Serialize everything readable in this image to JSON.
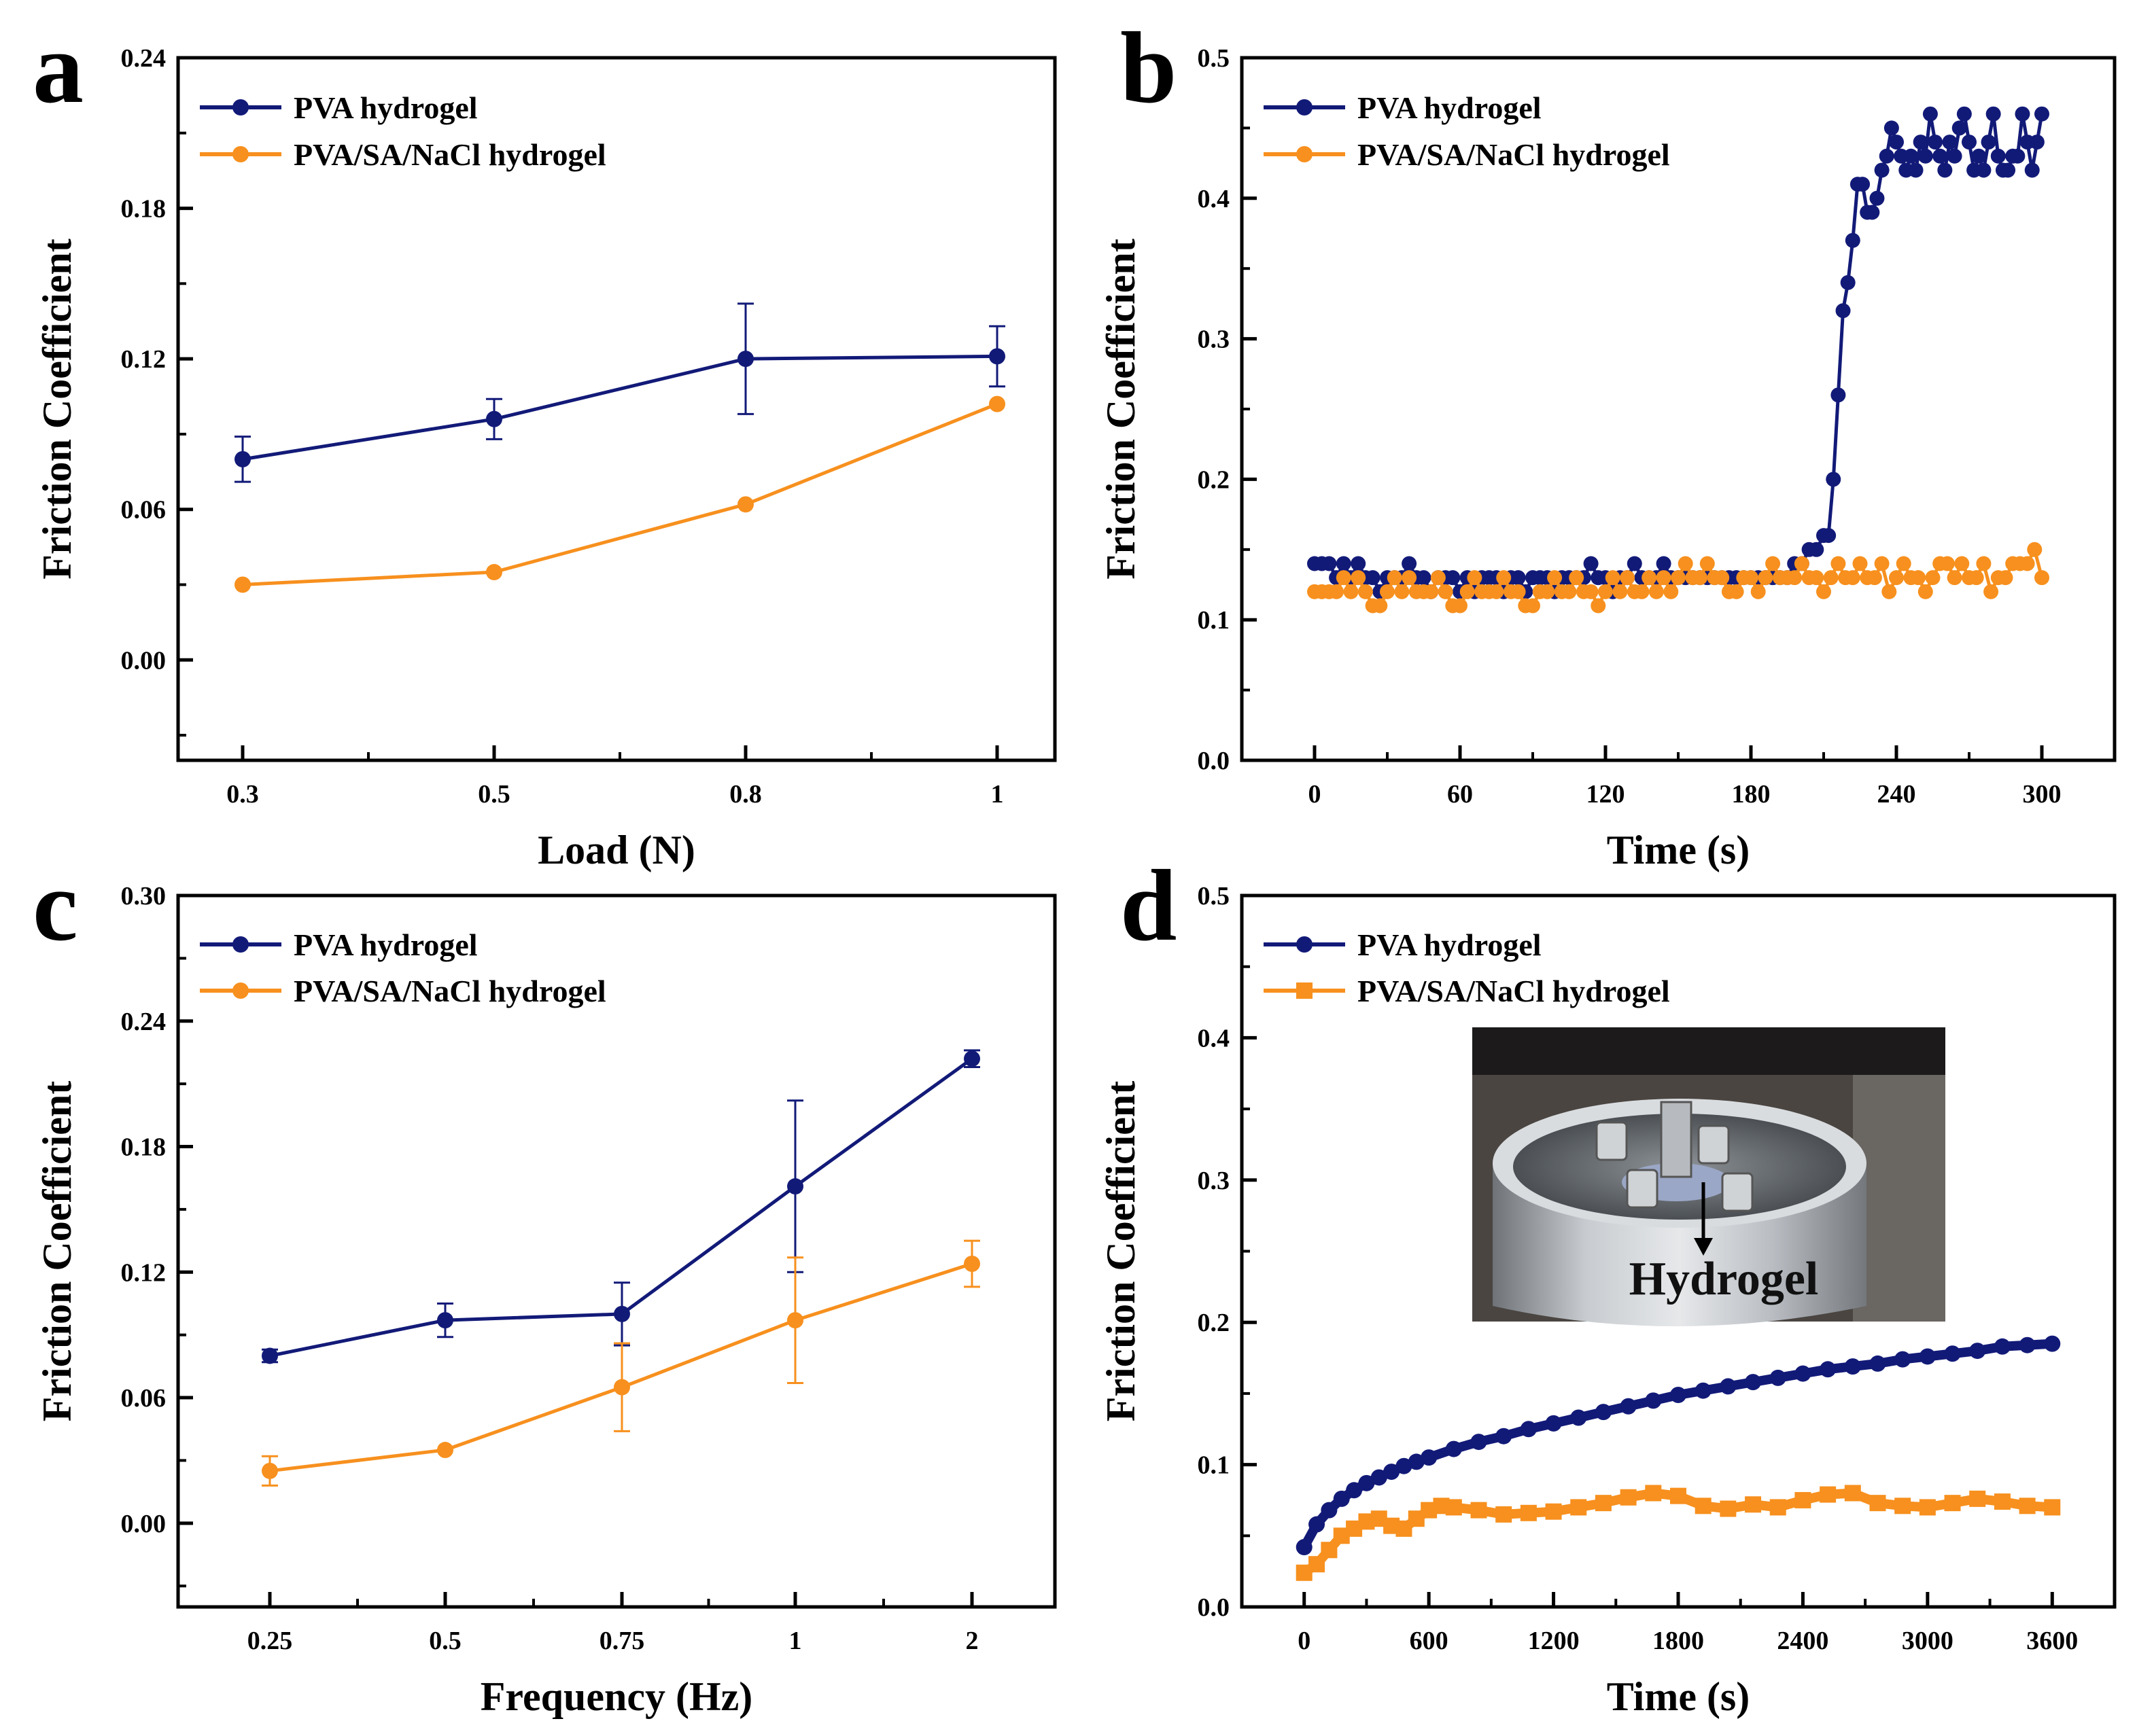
{
  "colors": {
    "pva": "#121a78",
    "pva_sa_nacl": "#f7901e",
    "axis": "#000000"
  },
  "chart_data": [
    {
      "panel": "a",
      "type": "line",
      "xlabel": "Load (N)",
      "ylabel": "Friction Coefficient",
      "categories": [
        "0.3",
        "0.5",
        "0.8",
        "1"
      ],
      "ylim": [
        -0.04,
        0.24
      ],
      "yticks": [
        0.0,
        0.06,
        0.12,
        0.18,
        0.24
      ],
      "ytick_labels": [
        "0.00",
        "0.06",
        "0.12",
        "0.18",
        "0.24"
      ],
      "legend_position": "top-left",
      "series": [
        {
          "name": "PVA hydrogel",
          "marker": "circle",
          "values": [
            0.08,
            0.096,
            0.12,
            0.121
          ],
          "errors": [
            0.009,
            0.008,
            0.022,
            0.012
          ]
        },
        {
          "name": "PVA/SA/NaCl hydrogel",
          "marker": "circle",
          "values": [
            0.03,
            0.035,
            0.062,
            0.102
          ],
          "errors": [
            0,
            0,
            0,
            0
          ]
        }
      ]
    },
    {
      "panel": "b",
      "type": "line",
      "xlabel": "Time (s)",
      "ylabel": "Friction Coefficient",
      "xlim": [
        -30,
        330
      ],
      "ylim": [
        0.0,
        0.5
      ],
      "xticks": [
        0,
        60,
        120,
        180,
        240,
        300
      ],
      "xtick_labels": [
        "0",
        "60",
        "120",
        "180",
        "240",
        "300"
      ],
      "yticks": [
        0.0,
        0.1,
        0.2,
        0.3,
        0.4,
        0.5
      ],
      "ytick_labels": [
        "0.0",
        "0.1",
        "0.2",
        "0.3",
        "0.4",
        "0.5"
      ],
      "legend_position": "top-left",
      "series": [
        {
          "name": "PVA hydrogel",
          "marker": "circle",
          "x": [
            0,
            3,
            6,
            9,
            12,
            15,
            18,
            21,
            24,
            27,
            30,
            33,
            36,
            39,
            42,
            45,
            48,
            51,
            54,
            57,
            60,
            63,
            66,
            69,
            72,
            75,
            78,
            81,
            84,
            87,
            90,
            93,
            96,
            99,
            102,
            105,
            108,
            111,
            114,
            117,
            120,
            123,
            126,
            129,
            132,
            135,
            138,
            141,
            144,
            147,
            150,
            153,
            156,
            159,
            162,
            165,
            168,
            171,
            174,
            177,
            180,
            183,
            186,
            189,
            192,
            195,
            198,
            201,
            204,
            207,
            210,
            212,
            214,
            216,
            218,
            220,
            222,
            224,
            226,
            228,
            230,
            232,
            234,
            236,
            238,
            240,
            242,
            244,
            246,
            248,
            250,
            252,
            254,
            256,
            258,
            260,
            262,
            264,
            266,
            268,
            270,
            272,
            274,
            276,
            278,
            280,
            282,
            284,
            286,
            288,
            290,
            292,
            294,
            296,
            298,
            300
          ],
          "y": [
            0.14,
            0.14,
            0.14,
            0.13,
            0.14,
            0.13,
            0.14,
            0.13,
            0.13,
            0.12,
            0.13,
            0.13,
            0.13,
            0.14,
            0.13,
            0.13,
            0.12,
            0.13,
            0.13,
            0.13,
            0.12,
            0.13,
            0.12,
            0.13,
            0.13,
            0.13,
            0.12,
            0.13,
            0.13,
            0.12,
            0.13,
            0.13,
            0.13,
            0.12,
            0.13,
            0.13,
            0.13,
            0.13,
            0.14,
            0.13,
            0.13,
            0.12,
            0.13,
            0.13,
            0.14,
            0.13,
            0.13,
            0.13,
            0.14,
            0.13,
            0.13,
            0.13,
            0.13,
            0.13,
            0.13,
            0.13,
            0.13,
            0.13,
            0.13,
            0.13,
            0.13,
            0.13,
            0.13,
            0.13,
            0.13,
            0.13,
            0.14,
            0.14,
            0.15,
            0.15,
            0.16,
            0.16,
            0.2,
            0.26,
            0.32,
            0.34,
            0.37,
            0.41,
            0.41,
            0.39,
            0.39,
            0.4,
            0.42,
            0.43,
            0.45,
            0.44,
            0.43,
            0.42,
            0.43,
            0.42,
            0.44,
            0.43,
            0.46,
            0.44,
            0.43,
            0.42,
            0.44,
            0.43,
            0.45,
            0.46,
            0.44,
            0.42,
            0.43,
            0.42,
            0.44,
            0.46,
            0.43,
            0.42,
            0.42,
            0.43,
            0.43,
            0.46,
            0.44,
            0.42,
            0.44,
            0.46
          ]
        },
        {
          "name": "PVA/SA/NaCl hydrogel",
          "marker": "circle",
          "x": [
            0,
            3,
            6,
            9,
            12,
            15,
            18,
            21,
            24,
            27,
            30,
            33,
            36,
            39,
            42,
            45,
            48,
            51,
            54,
            57,
            60,
            63,
            66,
            69,
            72,
            75,
            78,
            81,
            84,
            87,
            90,
            93,
            96,
            99,
            102,
            105,
            108,
            111,
            114,
            117,
            120,
            123,
            126,
            129,
            132,
            135,
            138,
            141,
            144,
            147,
            150,
            153,
            156,
            159,
            162,
            165,
            168,
            171,
            174,
            177,
            180,
            183,
            186,
            189,
            192,
            195,
            198,
            201,
            204,
            207,
            210,
            213,
            216,
            219,
            222,
            225,
            228,
            231,
            234,
            237,
            240,
            243,
            246,
            249,
            252,
            255,
            258,
            261,
            264,
            267,
            270,
            273,
            276,
            279,
            282,
            285,
            288,
            291,
            294,
            297,
            300
          ],
          "y": [
            0.12,
            0.12,
            0.12,
            0.12,
            0.13,
            0.12,
            0.13,
            0.12,
            0.11,
            0.11,
            0.12,
            0.13,
            0.12,
            0.13,
            0.12,
            0.12,
            0.12,
            0.13,
            0.12,
            0.11,
            0.11,
            0.12,
            0.13,
            0.12,
            0.12,
            0.12,
            0.13,
            0.12,
            0.12,
            0.11,
            0.11,
            0.12,
            0.12,
            0.13,
            0.12,
            0.12,
            0.13,
            0.12,
            0.12,
            0.11,
            0.12,
            0.13,
            0.12,
            0.13,
            0.12,
            0.12,
            0.13,
            0.12,
            0.13,
            0.12,
            0.13,
            0.14,
            0.13,
            0.13,
            0.14,
            0.13,
            0.13,
            0.12,
            0.12,
            0.13,
            0.13,
            0.12,
            0.13,
            0.14,
            0.13,
            0.13,
            0.13,
            0.14,
            0.13,
            0.13,
            0.12,
            0.13,
            0.14,
            0.13,
            0.13,
            0.14,
            0.13,
            0.13,
            0.14,
            0.12,
            0.13,
            0.14,
            0.13,
            0.13,
            0.12,
            0.13,
            0.14,
            0.14,
            0.13,
            0.14,
            0.13,
            0.13,
            0.14,
            0.12,
            0.13,
            0.13,
            0.14,
            0.14,
            0.14,
            0.15,
            0.13
          ]
        }
      ]
    },
    {
      "panel": "c",
      "type": "line",
      "xlabel": "Frequency (Hz)",
      "ylabel": "Friction Coefficient",
      "categories": [
        "0.25",
        "0.5",
        "0.75",
        "1",
        "2"
      ],
      "ylim": [
        -0.04,
        0.3
      ],
      "yticks": [
        0.0,
        0.06,
        0.12,
        0.18,
        0.24,
        0.3
      ],
      "ytick_labels": [
        "0.00",
        "0.06",
        "0.12",
        "0.18",
        "0.24",
        "0.30"
      ],
      "legend_position": "top-left",
      "series": [
        {
          "name": "PVA hydrogel",
          "marker": "circle",
          "values": [
            0.08,
            0.097,
            0.1,
            0.161,
            0.222
          ],
          "errors": [
            0.003,
            0.008,
            0.015,
            0.041,
            0.004
          ]
        },
        {
          "name": "PVA/SA/NaCl hydrogel",
          "marker": "circle",
          "values": [
            0.025,
            0.035,
            0.065,
            0.097,
            0.124
          ],
          "errors": [
            0.007,
            0.0,
            0.021,
            0.03,
            0.011
          ]
        }
      ]
    },
    {
      "panel": "d",
      "type": "line",
      "xlabel": "Time (s)",
      "ylabel": "Friction Coefficient",
      "xlim": [
        -300,
        3900
      ],
      "ylim": [
        0.0,
        0.5
      ],
      "xticks": [
        0,
        600,
        1200,
        1800,
        2400,
        3000,
        3600
      ],
      "xtick_labels": [
        "0",
        "600",
        "1200",
        "1800",
        "2400",
        "3000",
        "3600"
      ],
      "yticks": [
        0.0,
        0.1,
        0.2,
        0.3,
        0.4,
        0.5
      ],
      "ytick_labels": [
        "0.0",
        "0.1",
        "0.2",
        "0.3",
        "0.4",
        "0.5"
      ],
      "legend_position": "top-left",
      "inset_label": "Hydrogel",
      "series": [
        {
          "name": "PVA hydrogel",
          "marker": "circle",
          "x": [
            0,
            60,
            120,
            180,
            240,
            300,
            360,
            420,
            480,
            540,
            600,
            720,
            840,
            960,
            1080,
            1200,
            1320,
            1440,
            1560,
            1680,
            1800,
            1920,
            2040,
            2160,
            2280,
            2400,
            2520,
            2640,
            2760,
            2880,
            3000,
            3120,
            3240,
            3360,
            3480,
            3600
          ],
          "y": [
            0.042,
            0.058,
            0.068,
            0.076,
            0.082,
            0.087,
            0.091,
            0.095,
            0.099,
            0.102,
            0.105,
            0.111,
            0.116,
            0.12,
            0.125,
            0.129,
            0.133,
            0.137,
            0.141,
            0.145,
            0.149,
            0.152,
            0.155,
            0.158,
            0.161,
            0.164,
            0.167,
            0.169,
            0.171,
            0.174,
            0.176,
            0.178,
            0.18,
            0.183,
            0.184,
            0.185
          ]
        },
        {
          "name": "PVA/SA/NaCl hydrogel",
          "marker": "square",
          "x": [
            0,
            60,
            120,
            180,
            240,
            300,
            360,
            420,
            480,
            540,
            600,
            660,
            720,
            840,
            960,
            1080,
            1200,
            1320,
            1440,
            1560,
            1680,
            1800,
            1920,
            2040,
            2160,
            2280,
            2400,
            2520,
            2640,
            2760,
            2880,
            3000,
            3120,
            3240,
            3360,
            3480,
            3600
          ],
          "y": [
            0.024,
            0.03,
            0.04,
            0.05,
            0.055,
            0.06,
            0.062,
            0.057,
            0.055,
            0.062,
            0.068,
            0.071,
            0.07,
            0.068,
            0.065,
            0.066,
            0.067,
            0.07,
            0.073,
            0.077,
            0.08,
            0.078,
            0.071,
            0.069,
            0.072,
            0.07,
            0.075,
            0.079,
            0.08,
            0.073,
            0.071,
            0.07,
            0.073,
            0.076,
            0.074,
            0.071,
            0.07
          ]
        }
      ]
    }
  ]
}
